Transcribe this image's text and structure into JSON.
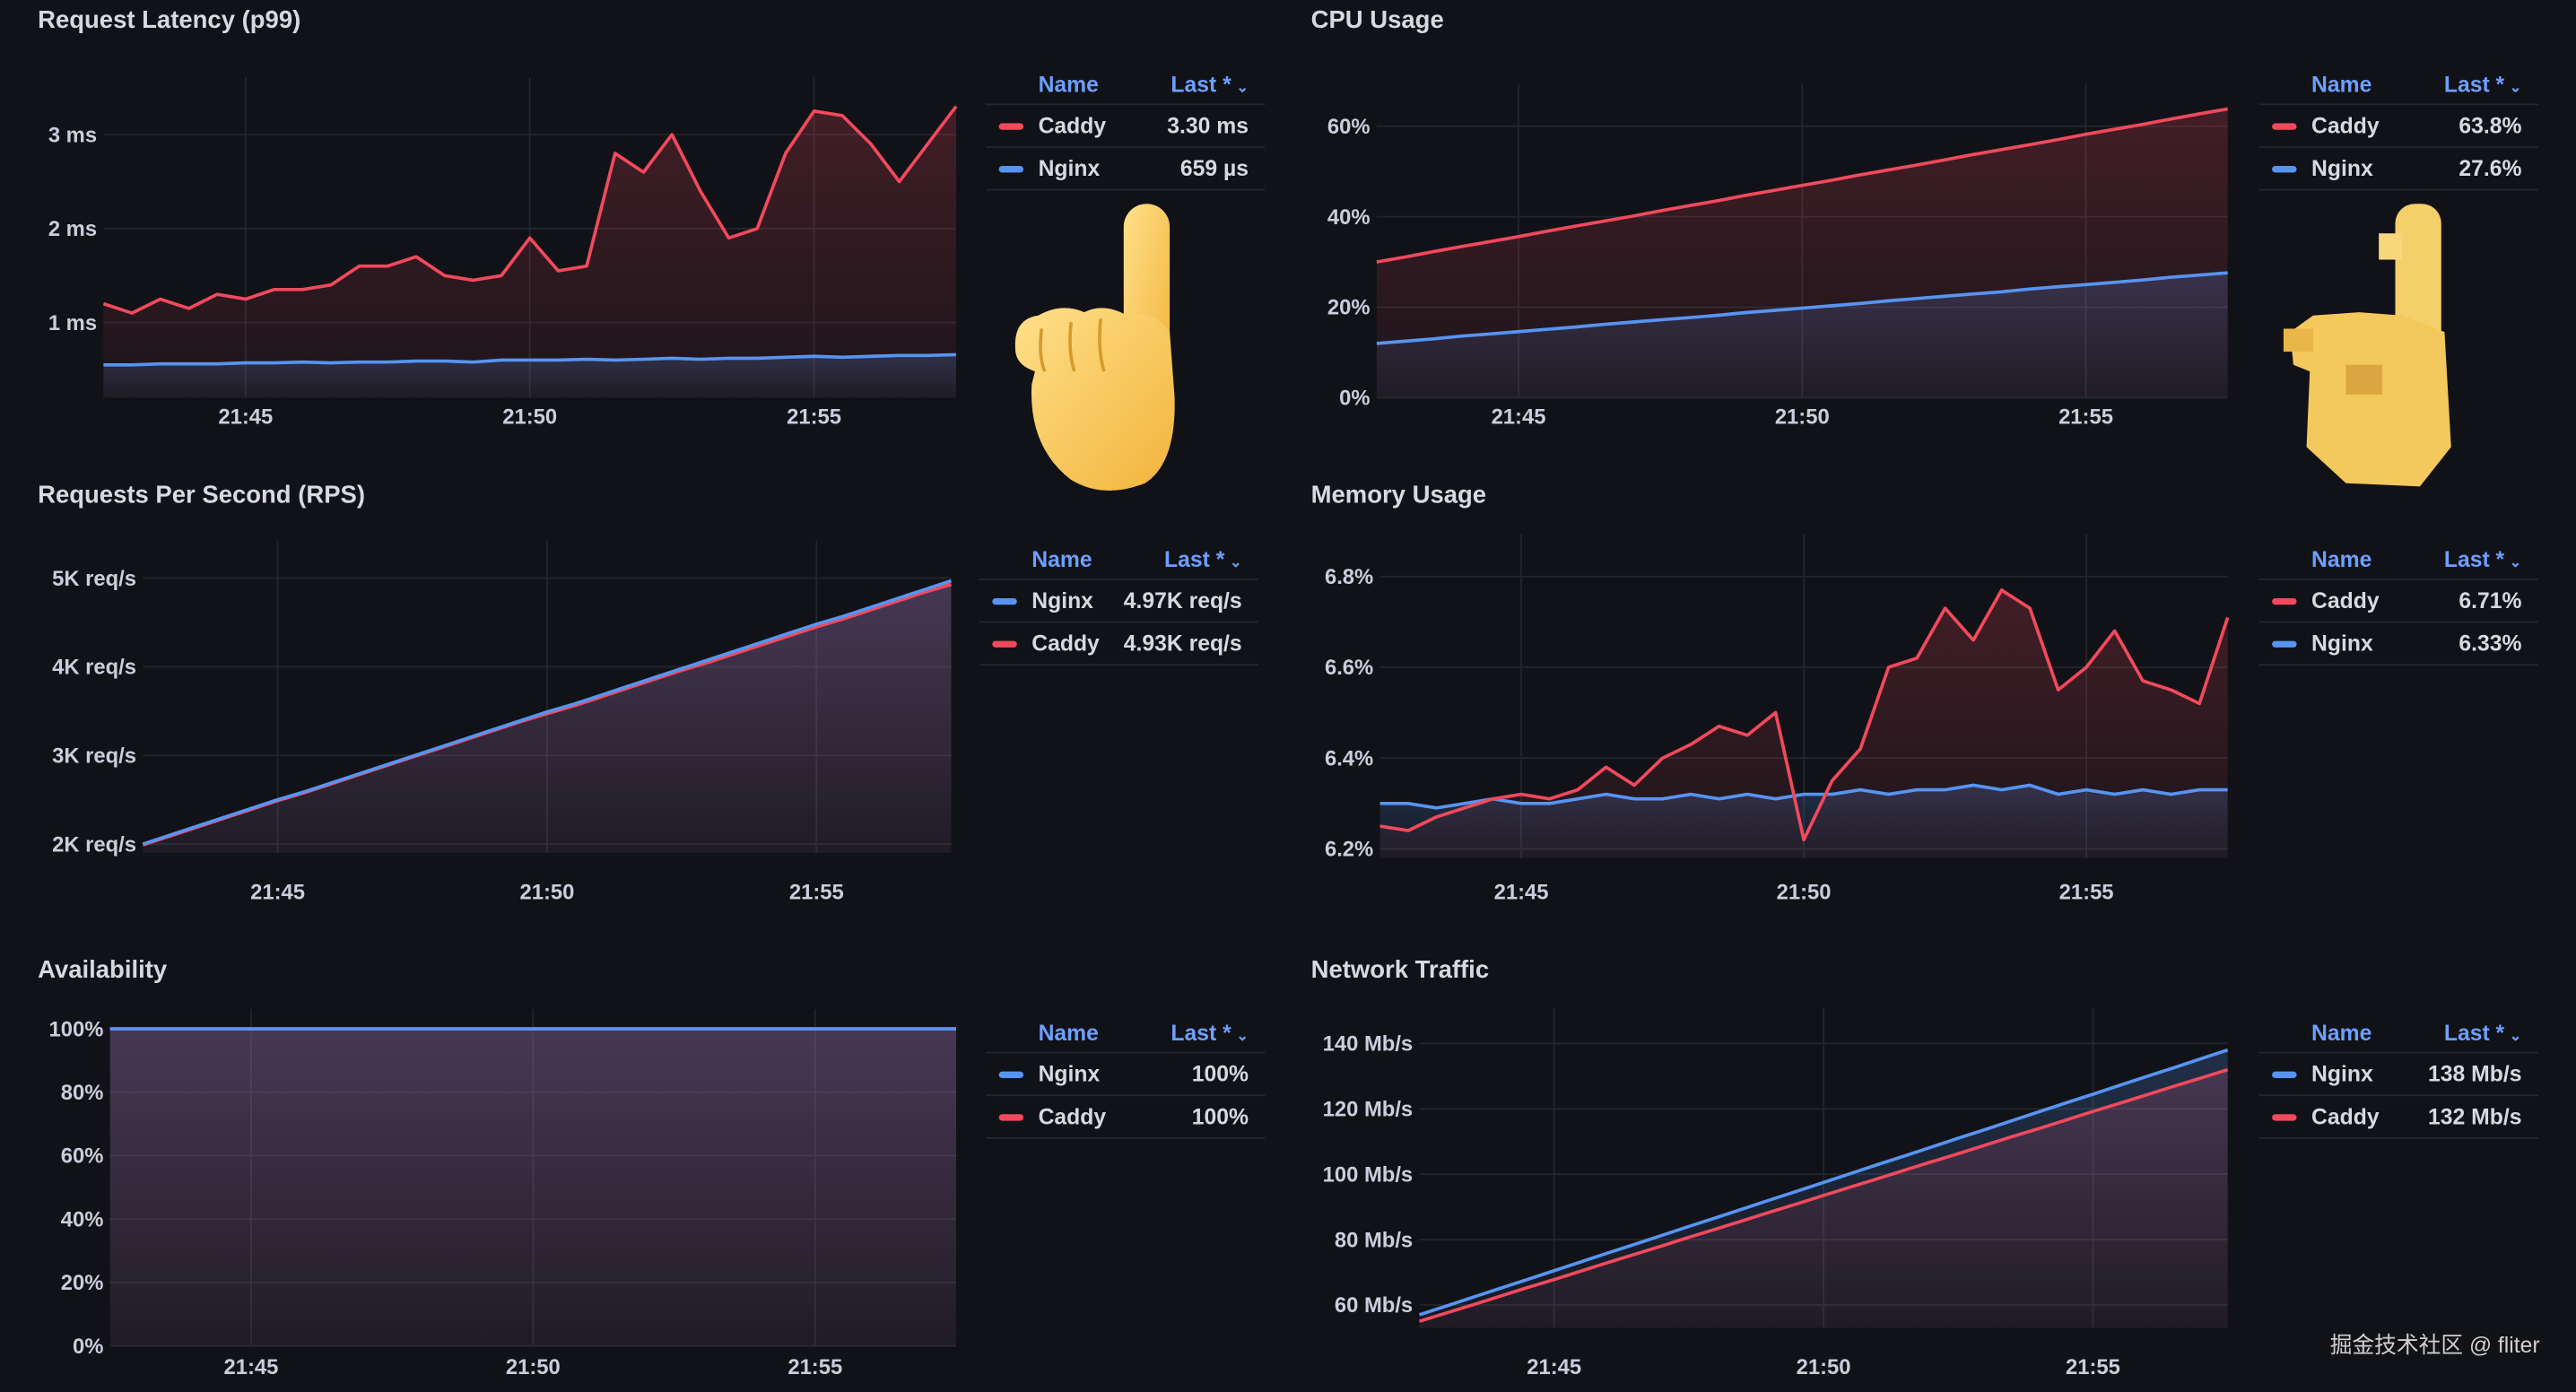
{
  "colors": {
    "background": "#111217",
    "caddy": "#f2495c",
    "nginx": "#5794f2",
    "legend_header": "#6e9fff"
  },
  "legend_headers": {
    "name": "Name",
    "last": "Last *"
  },
  "watermark": "掘金技术社区 @ fliter",
  "decorations": [
    "pointing-up-hand-emoji",
    "pointing-up-hand-emoji-pixelated"
  ],
  "panels": [
    {
      "title": "Request Latency (p99)",
      "legend": [
        {
          "name": "Caddy",
          "last": "3.30 ms",
          "color": "#f2495c"
        },
        {
          "name": "Nginx",
          "last": "659 µs",
          "color": "#5794f2"
        }
      ]
    },
    {
      "title": "CPU Usage",
      "legend": [
        {
          "name": "Caddy",
          "last": "63.8%",
          "color": "#f2495c"
        },
        {
          "name": "Nginx",
          "last": "27.6%",
          "color": "#5794f2"
        }
      ]
    },
    {
      "title": "Requests Per Second (RPS)",
      "legend": [
        {
          "name": "Nginx",
          "last": "4.97K req/s",
          "color": "#5794f2"
        },
        {
          "name": "Caddy",
          "last": "4.93K req/s",
          "color": "#f2495c"
        }
      ]
    },
    {
      "title": "Memory Usage",
      "legend": [
        {
          "name": "Caddy",
          "last": "6.71%",
          "color": "#f2495c"
        },
        {
          "name": "Nginx",
          "last": "6.33%",
          "color": "#5794f2"
        }
      ]
    },
    {
      "title": "Availability",
      "legend": [
        {
          "name": "Nginx",
          "last": "100%",
          "color": "#5794f2"
        },
        {
          "name": "Caddy",
          "last": "100%",
          "color": "#f2495c"
        }
      ]
    },
    {
      "title": "Network Traffic",
      "legend": [
        {
          "name": "Nginx",
          "last": "138 Mb/s",
          "color": "#5794f2"
        },
        {
          "name": "Caddy",
          "last": "132 Mb/s",
          "color": "#f2495c"
        }
      ]
    }
  ],
  "chart_data": [
    {
      "type": "line",
      "title": "Request Latency (p99)",
      "xlim": [
        "21:42:30",
        "21:57:30"
      ],
      "ylim": [
        0.2,
        3.4
      ],
      "grid": true,
      "x_ticks": [
        "21:45",
        "21:50",
        "21:55"
      ],
      "y_ticks": [
        {
          "v": 1,
          "label": "1 ms"
        },
        {
          "v": 2,
          "label": "2 ms"
        },
        {
          "v": 3,
          "label": "3 ms"
        }
      ],
      "x": [
        "21:42:30",
        "21:43:00",
        "21:43:30",
        "21:44:00",
        "21:44:30",
        "21:45:00",
        "21:45:30",
        "21:46:00",
        "21:46:30",
        "21:47:00",
        "21:47:30",
        "21:48:00",
        "21:48:30",
        "21:49:00",
        "21:49:30",
        "21:50:00",
        "21:50:30",
        "21:51:00",
        "21:51:30",
        "21:52:00",
        "21:52:30",
        "21:53:00",
        "21:53:30",
        "21:54:00",
        "21:54:30",
        "21:55:00",
        "21:55:30",
        "21:56:00",
        "21:56:30",
        "21:57:00",
        "21:57:30"
      ],
      "series": [
        {
          "name": "Caddy",
          "color": "#f2495c",
          "values": [
            1.2,
            1.1,
            1.25,
            1.15,
            1.3,
            1.25,
            1.35,
            1.35,
            1.4,
            1.6,
            1.6,
            1.7,
            1.5,
            1.45,
            1.5,
            1.9,
            1.55,
            1.6,
            2.8,
            2.6,
            3.0,
            2.4,
            1.9,
            2.0,
            2.8,
            3.25,
            3.2,
            2.9,
            2.5,
            2.9,
            3.3
          ]
        },
        {
          "name": "Nginx",
          "color": "#5794f2",
          "values": [
            0.55,
            0.55,
            0.56,
            0.56,
            0.56,
            0.57,
            0.57,
            0.58,
            0.57,
            0.58,
            0.58,
            0.59,
            0.59,
            0.58,
            0.6,
            0.6,
            0.6,
            0.61,
            0.6,
            0.61,
            0.62,
            0.61,
            0.62,
            0.62,
            0.63,
            0.64,
            0.63,
            0.64,
            0.65,
            0.65,
            0.659
          ]
        }
      ]
    },
    {
      "type": "area",
      "title": "CPU Usage",
      "xlim": [
        "21:42:30",
        "21:57:30"
      ],
      "ylim": [
        0,
        65
      ],
      "grid": true,
      "x_ticks": [
        "21:45",
        "21:50",
        "21:55"
      ],
      "y_ticks": [
        {
          "v": 0,
          "label": "0%"
        },
        {
          "v": 20,
          "label": "20%"
        },
        {
          "v": 40,
          "label": "40%"
        },
        {
          "v": 60,
          "label": "60%"
        }
      ],
      "x": [
        "21:42:30",
        "21:43:00",
        "21:43:30",
        "21:44:00",
        "21:44:30",
        "21:45:00",
        "21:45:30",
        "21:46:00",
        "21:46:30",
        "21:47:00",
        "21:47:30",
        "21:48:00",
        "21:48:30",
        "21:49:00",
        "21:49:30",
        "21:50:00",
        "21:50:30",
        "21:51:00",
        "21:51:30",
        "21:52:00",
        "21:52:30",
        "21:53:00",
        "21:53:30",
        "21:54:00",
        "21:54:30",
        "21:55:00",
        "21:55:30",
        "21:56:00",
        "21:56:30",
        "21:57:00",
        "21:57:30"
      ],
      "series": [
        {
          "name": "Caddy",
          "color": "#f2495c",
          "values": [
            30,
            31.1,
            32.3,
            33.4,
            34.5,
            35.6,
            36.8,
            37.9,
            39,
            40.1,
            41.3,
            42.4,
            43.5,
            44.7,
            45.8,
            46.9,
            48,
            49.2,
            50.3,
            51.4,
            52.5,
            53.7,
            54.8,
            55.9,
            57,
            58.2,
            59.3,
            60.4,
            61.6,
            62.7,
            63.8
          ]
        },
        {
          "name": "Nginx",
          "color": "#5794f2",
          "values": [
            12,
            12.5,
            13,
            13.6,
            14.1,
            14.6,
            15.1,
            15.6,
            16.2,
            16.7,
            17.2,
            17.7,
            18.2,
            18.8,
            19.3,
            19.8,
            20.3,
            20.8,
            21.4,
            21.9,
            22.4,
            22.9,
            23.4,
            24,
            24.5,
            25,
            25.5,
            26,
            26.6,
            27.1,
            27.6
          ]
        }
      ]
    },
    {
      "type": "line",
      "title": "Requests Per Second (RPS)",
      "xlim": [
        "21:42:30",
        "21:57:30"
      ],
      "ylim": [
        1.9,
        5.2
      ],
      "grid": true,
      "x_ticks": [
        "21:45",
        "21:50",
        "21:55"
      ],
      "y_ticks": [
        {
          "v": 2,
          "label": "2K req/s"
        },
        {
          "v": 3,
          "label": "3K req/s"
        },
        {
          "v": 4,
          "label": "4K req/s"
        },
        {
          "v": 5,
          "label": "5K req/s"
        }
      ],
      "x": [
        "21:42:30",
        "21:43:00",
        "21:43:30",
        "21:44:00",
        "21:44:30",
        "21:45:00",
        "21:45:30",
        "21:46:00",
        "21:46:30",
        "21:47:00",
        "21:47:30",
        "21:48:00",
        "21:48:30",
        "21:49:00",
        "21:49:30",
        "21:50:00",
        "21:50:30",
        "21:51:00",
        "21:51:30",
        "21:52:00",
        "21:52:30",
        "21:53:00",
        "21:53:30",
        "21:54:00",
        "21:54:30",
        "21:55:00",
        "21:55:30",
        "21:56:00",
        "21:56:30",
        "21:57:00",
        "21:57:30"
      ],
      "series": [
        {
          "name": "Nginx",
          "color": "#5794f2",
          "values": [
            2,
            2.1,
            2.2,
            2.3,
            2.4,
            2.5,
            2.59,
            2.69,
            2.79,
            2.89,
            2.99,
            3.09,
            3.19,
            3.29,
            3.39,
            3.49,
            3.58,
            3.68,
            3.78,
            3.88,
            3.98,
            4.08,
            4.18,
            4.28,
            4.38,
            4.48,
            4.57,
            4.67,
            4.77,
            4.87,
            4.97
          ]
        },
        {
          "name": "Caddy",
          "color": "#f2495c",
          "values": [
            1.99,
            2.09,
            2.19,
            2.29,
            2.39,
            2.49,
            2.58,
            2.68,
            2.78,
            2.88,
            2.98,
            3.08,
            3.18,
            3.28,
            3.38,
            3.47,
            3.56,
            3.66,
            3.76,
            3.86,
            3.96,
            4.05,
            4.15,
            4.25,
            4.35,
            4.45,
            4.54,
            4.64,
            4.74,
            4.84,
            4.93
          ]
        }
      ]
    },
    {
      "type": "line",
      "title": "Memory Usage",
      "xlim": [
        "21:42:30",
        "21:57:30"
      ],
      "ylim": [
        6.18,
        6.85
      ],
      "grid": true,
      "x_ticks": [
        "21:45",
        "21:50",
        "21:55"
      ],
      "y_ticks": [
        {
          "v": 6.2,
          "label": "6.2%"
        },
        {
          "v": 6.4,
          "label": "6.4%"
        },
        {
          "v": 6.6,
          "label": "6.6%"
        },
        {
          "v": 6.8,
          "label": "6.8%"
        }
      ],
      "x": [
        "21:42:30",
        "21:43:00",
        "21:43:30",
        "21:44:00",
        "21:44:30",
        "21:45:00",
        "21:45:30",
        "21:46:00",
        "21:46:30",
        "21:47:00",
        "21:47:30",
        "21:48:00",
        "21:48:30",
        "21:49:00",
        "21:49:30",
        "21:50:00",
        "21:50:30",
        "21:51:00",
        "21:51:30",
        "21:52:00",
        "21:52:30",
        "21:53:00",
        "21:53:30",
        "21:54:00",
        "21:54:30",
        "21:55:00",
        "21:55:30",
        "21:56:00",
        "21:56:30",
        "21:57:00",
        "21:57:30"
      ],
      "series": [
        {
          "name": "Caddy",
          "color": "#f2495c",
          "values": [
            6.25,
            6.24,
            6.27,
            6.29,
            6.31,
            6.32,
            6.31,
            6.33,
            6.38,
            6.34,
            6.4,
            6.43,
            6.47,
            6.45,
            6.5,
            6.22,
            6.35,
            6.42,
            6.6,
            6.62,
            6.73,
            6.66,
            6.77,
            6.73,
            6.55,
            6.6,
            6.68,
            6.57,
            6.55,
            6.52,
            6.71
          ]
        },
        {
          "name": "Nginx",
          "color": "#5794f2",
          "values": [
            6.3,
            6.3,
            6.29,
            6.3,
            6.31,
            6.3,
            6.3,
            6.31,
            6.32,
            6.31,
            6.31,
            6.32,
            6.31,
            6.32,
            6.31,
            6.32,
            6.32,
            6.33,
            6.32,
            6.33,
            6.33,
            6.34,
            6.33,
            6.34,
            6.32,
            6.33,
            6.32,
            6.33,
            6.32,
            6.33,
            6.33
          ]
        }
      ]
    },
    {
      "type": "area",
      "title": "Availability",
      "xlim": [
        "21:42:30",
        "21:57:30"
      ],
      "ylim": [
        0,
        100
      ],
      "grid": true,
      "x_ticks": [
        "21:45",
        "21:50",
        "21:55"
      ],
      "y_ticks": [
        {
          "v": 0,
          "label": "0%"
        },
        {
          "v": 20,
          "label": "20%"
        },
        {
          "v": 40,
          "label": "40%"
        },
        {
          "v": 60,
          "label": "60%"
        },
        {
          "v": 80,
          "label": "80%"
        },
        {
          "v": 100,
          "label": "100%"
        }
      ],
      "x": [
        "21:42:30",
        "21:43:00",
        "21:43:30",
        "21:44:00",
        "21:44:30",
        "21:45:00",
        "21:45:30",
        "21:46:00",
        "21:46:30",
        "21:47:00",
        "21:47:30",
        "21:48:00",
        "21:48:30",
        "21:49:00",
        "21:49:30",
        "21:50:00",
        "21:50:30",
        "21:51:00",
        "21:51:30",
        "21:52:00",
        "21:52:30",
        "21:53:00",
        "21:53:30",
        "21:54:00",
        "21:54:30",
        "21:55:00",
        "21:55:30",
        "21:56:00",
        "21:56:30",
        "21:57:00",
        "21:57:30"
      ],
      "series": [
        {
          "name": "Nginx",
          "color": "#5794f2",
          "values": [
            100,
            100,
            100,
            100,
            100,
            100,
            100,
            100,
            100,
            100,
            100,
            100,
            100,
            100,
            100,
            100,
            100,
            100,
            100,
            100,
            100,
            100,
            100,
            100,
            100,
            100,
            100,
            100,
            100,
            100,
            100
          ]
        },
        {
          "name": "Caddy",
          "color": "#f2495c",
          "values": [
            100,
            100,
            100,
            100,
            100,
            100,
            100,
            100,
            100,
            100,
            100,
            100,
            100,
            100,
            100,
            100,
            100,
            100,
            100,
            100,
            100,
            100,
            100,
            100,
            100,
            100,
            100,
            100,
            100,
            100,
            100
          ]
        }
      ]
    },
    {
      "type": "line",
      "title": "Network Traffic",
      "xlim": [
        "21:42:30",
        "21:57:30"
      ],
      "ylim": [
        53,
        145
      ],
      "grid": true,
      "x_ticks": [
        "21:45",
        "21:50",
        "21:55"
      ],
      "y_ticks": [
        {
          "v": 60,
          "label": "60 Mb/s"
        },
        {
          "v": 80,
          "label": "80 Mb/s"
        },
        {
          "v": 100,
          "label": "100 Mb/s"
        },
        {
          "v": 120,
          "label": "120 Mb/s"
        },
        {
          "v": 140,
          "label": "140 Mb/s"
        }
      ],
      "x": [
        "21:42:30",
        "21:43:00",
        "21:43:30",
        "21:44:00",
        "21:44:30",
        "21:45:00",
        "21:45:30",
        "21:46:00",
        "21:46:30",
        "21:47:00",
        "21:47:30",
        "21:48:00",
        "21:48:30",
        "21:49:00",
        "21:49:30",
        "21:50:00",
        "21:50:30",
        "21:51:00",
        "21:51:30",
        "21:52:00",
        "21:52:30",
        "21:53:00",
        "21:53:30",
        "21:54:00",
        "21:54:30",
        "21:55:00",
        "21:55:30",
        "21:56:00",
        "21:56:30",
        "21:57:00",
        "21:57:30"
      ],
      "series": [
        {
          "name": "Nginx",
          "color": "#5794f2",
          "values": [
            57,
            59.7,
            62.4,
            65.1,
            67.8,
            70.5,
            73.2,
            75.9,
            78.6,
            81.3,
            84,
            86.7,
            89.4,
            92.1,
            94.8,
            97.5,
            100.2,
            102.9,
            105.6,
            108.3,
            111,
            113.7,
            116.4,
            119.1,
            121.8,
            124.5,
            127.2,
            129.9,
            132.6,
            135.3,
            138
          ]
        },
        {
          "name": "Caddy",
          "color": "#f2495c",
          "values": [
            55,
            57.6,
            60.1,
            62.7,
            65.3,
            67.8,
            70.4,
            73,
            75.5,
            78.1,
            80.7,
            83.2,
            85.8,
            88.4,
            90.9,
            93.5,
            96.1,
            98.6,
            101.2,
            103.8,
            106.3,
            108.9,
            111.5,
            114,
            116.6,
            119.2,
            121.7,
            124.3,
            126.9,
            129.4,
            132
          ]
        }
      ]
    }
  ]
}
